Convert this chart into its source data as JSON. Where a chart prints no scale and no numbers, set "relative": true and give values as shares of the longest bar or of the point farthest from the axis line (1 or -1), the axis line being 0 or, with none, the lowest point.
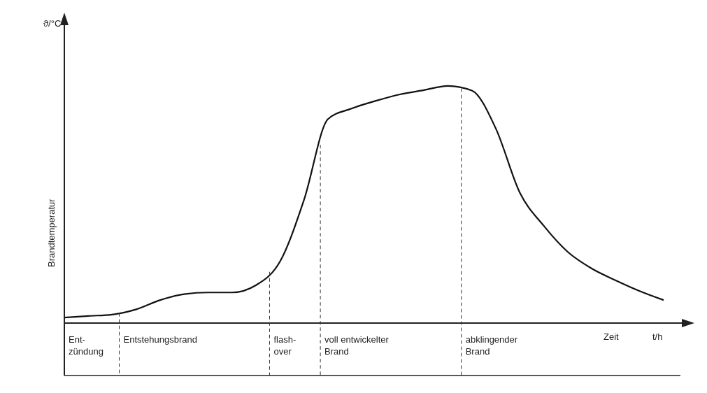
{
  "chart_data": {
    "type": "line",
    "relative": true,
    "ylabel": "Brandtemperatur",
    "xlabel": "Zeit",
    "color": "#111111",
    "marker": "none",
    "line_style": "solid",
    "categories": [
      null,
      null,
      null,
      null,
      null,
      null,
      null,
      null,
      null,
      null,
      null,
      null,
      null,
      null,
      null,
      null,
      null,
      null,
      null,
      null,
      null,
      null,
      null,
      null,
      null,
      null
    ],
    "values": [
      0.023,
      0.03,
      0.036,
      0.058,
      0.097,
      0.122,
      0.129,
      0.129,
      0.16,
      0.26,
      0.52,
      0.86,
      0.905,
      0.937,
      0.964,
      0.982,
      1,
      0.98,
      0.82,
      0.55,
      0.41,
      0.3,
      0.23,
      0.18,
      0.135,
      0.097
    ],
    "annotations": [
      "ϑ/°C",
      "t/h",
      "Ent-\nzündung",
      "Entstehungsbrand",
      "flash-\nover",
      "voll entwickelter\nBrand",
      "abklingender\nBrand"
    ]
  }
}
